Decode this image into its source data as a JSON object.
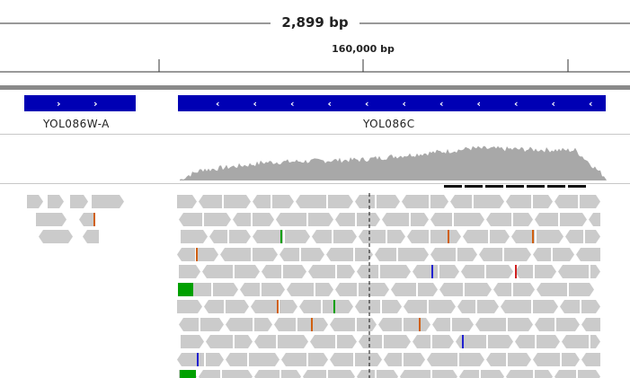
{
  "ruler": {
    "span_label": "2,899 bp",
    "position_label": "160,000 bp"
  },
  "genes": [
    {
      "name": "YOL086W-A",
      "strand": "+",
      "color": "#0000b4"
    },
    {
      "name": "YOL086C",
      "strand": "-",
      "color": "#0000b4"
    }
  ],
  "coverage": {
    "color": "#a8a8a8"
  },
  "alignments": {
    "read_color": "#cbcbcb",
    "mismatch_colors": {
      "A": "#00a000",
      "C": "#2020d0",
      "G": "#d06010",
      "T": "#d02020"
    }
  }
}
